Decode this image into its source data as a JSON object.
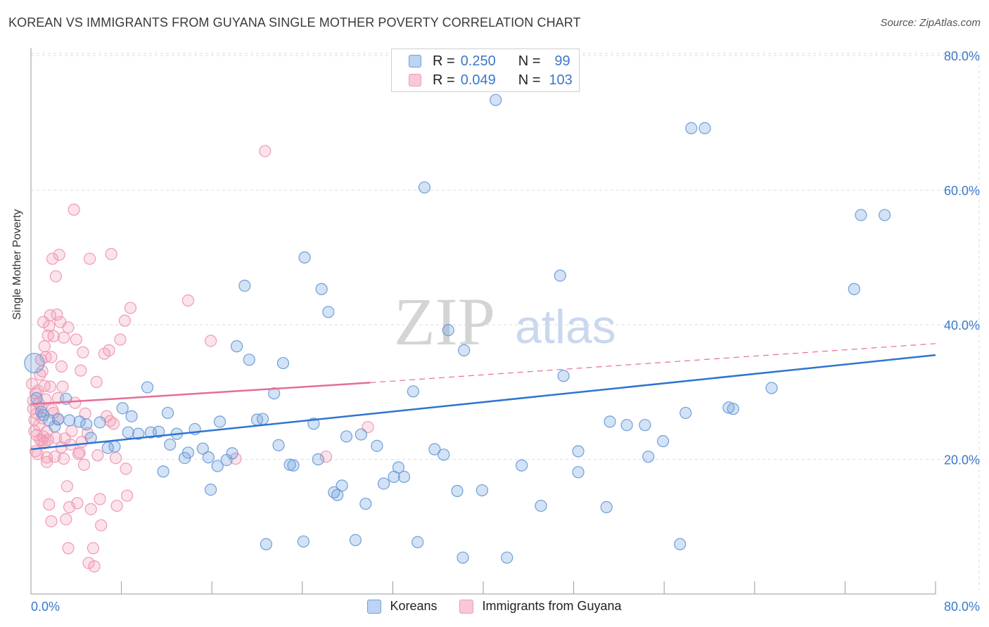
{
  "title": "KOREAN VS IMMIGRANTS FROM GUYANA SINGLE MOTHER POVERTY CORRELATION CHART",
  "source": "Source: ZipAtlas.com",
  "watermark": {
    "part1": "ZIP",
    "part2": "atlas"
  },
  "legend": {
    "r_label": "R =",
    "n_label": "N =",
    "rows": [
      {
        "r": "0.250",
        "n": "99"
      },
      {
        "r": "0.049",
        "n": "103"
      }
    ]
  },
  "chart_data": {
    "type": "scatter",
    "title": "KOREAN VS IMMIGRANTS FROM GUYANA SINGLE MOTHER POVERTY CORRELATION CHART",
    "xlabel": "",
    "ylabel": "Single Mother Poverty",
    "xlim": [
      0,
      80
    ],
    "ylim": [
      0,
      80
    ],
    "x_tick_labels": [
      "0.0%",
      "80.0%"
    ],
    "y_tick_labels": [
      "20.0%",
      "40.0%",
      "60.0%",
      "80.0%"
    ],
    "y_ticks": [
      20,
      40,
      60,
      80
    ],
    "grid": true,
    "legend_position": "top-center",
    "colors": {
      "koreans": "#6e9fdc",
      "guyana": "#f09ab5",
      "korean_line": "#2f74d0",
      "guyana_line": "#e56d97",
      "tick_text": "#3b78c9"
    },
    "series": [
      {
        "name": "Koreans",
        "r": 0.25,
        "n": 99,
        "trend": {
          "x": [
            0,
            80
          ],
          "y": [
            21.5,
            35.5
          ]
        },
        "points": [
          [
            0.3,
            34.3
          ],
          [
            0.5,
            29.1
          ],
          [
            1.1,
            26.6
          ],
          [
            2.4,
            26.0
          ],
          [
            3.1,
            29.0
          ],
          [
            3.4,
            25.8
          ],
          [
            4.3,
            25.6
          ],
          [
            5.3,
            23.2
          ],
          [
            6.1,
            25.5
          ],
          [
            6.8,
            21.7
          ],
          [
            8.1,
            27.6
          ],
          [
            8.9,
            26.4
          ],
          [
            8.6,
            24.0
          ],
          [
            9.5,
            23.8
          ],
          [
            10.3,
            30.7
          ],
          [
            10.6,
            24.0
          ],
          [
            11.7,
            18.2
          ],
          [
            12.1,
            26.9
          ],
          [
            12.3,
            22.2
          ],
          [
            12.9,
            23.8
          ],
          [
            13.6,
            20.2
          ],
          [
            13.9,
            21.0
          ],
          [
            14.5,
            24.5
          ],
          [
            15.2,
            21.6
          ],
          [
            15.7,
            20.3
          ],
          [
            15.9,
            15.5
          ],
          [
            16.5,
            19.0
          ],
          [
            16.7,
            25.6
          ],
          [
            17.3,
            19.9
          ],
          [
            17.8,
            20.9
          ],
          [
            18.2,
            36.8
          ],
          [
            18.9,
            45.8
          ],
          [
            19.3,
            34.8
          ],
          [
            20.0,
            25.9
          ],
          [
            20.5,
            26.0
          ],
          [
            20.8,
            7.4
          ],
          [
            21.5,
            29.8
          ],
          [
            21.9,
            22.1
          ],
          [
            22.3,
            34.3
          ],
          [
            22.9,
            19.2
          ],
          [
            23.2,
            19.1
          ],
          [
            24.1,
            7.8
          ],
          [
            24.2,
            50.0
          ],
          [
            25.0,
            25.3
          ],
          [
            25.4,
            20.0
          ],
          [
            25.7,
            45.3
          ],
          [
            26.3,
            41.9
          ],
          [
            26.8,
            15.1
          ],
          [
            27.1,
            14.7
          ],
          [
            27.5,
            16.1
          ],
          [
            27.9,
            23.4
          ],
          [
            28.7,
            8.0
          ],
          [
            29.2,
            23.7
          ],
          [
            29.6,
            13.4
          ],
          [
            30.6,
            22.0
          ],
          [
            31.2,
            16.4
          ],
          [
            32.1,
            17.4
          ],
          [
            32.5,
            18.8
          ],
          [
            33.0,
            17.4
          ],
          [
            33.8,
            30.1
          ],
          [
            34.2,
            7.7
          ],
          [
            34.8,
            60.4
          ],
          [
            35.7,
            21.5
          ],
          [
            36.5,
            20.7
          ],
          [
            36.9,
            39.2
          ],
          [
            37.7,
            15.3
          ],
          [
            38.2,
            5.4
          ],
          [
            38.3,
            36.2
          ],
          [
            39.9,
            15.4
          ],
          [
            41.1,
            73.4
          ],
          [
            42.1,
            5.4
          ],
          [
            43.4,
            19.1
          ],
          [
            45.1,
            13.1
          ],
          [
            46.8,
            47.3
          ],
          [
            47.1,
            32.4
          ],
          [
            48.4,
            18.1
          ],
          [
            48.4,
            21.2
          ],
          [
            50.9,
            12.9
          ],
          [
            51.2,
            25.6
          ],
          [
            52.7,
            25.1
          ],
          [
            54.3,
            25.1
          ],
          [
            54.6,
            20.4
          ],
          [
            55.9,
            22.7
          ],
          [
            57.4,
            7.4
          ],
          [
            57.9,
            26.9
          ],
          [
            58.4,
            69.2
          ],
          [
            59.6,
            69.2
          ],
          [
            61.7,
            27.7
          ],
          [
            62.1,
            27.5
          ],
          [
            65.5,
            30.6
          ],
          [
            72.8,
            45.3
          ],
          [
            73.4,
            56.3
          ],
          [
            75.5,
            56.3
          ],
          [
            1.6,
            25.8
          ],
          [
            0.9,
            27.1
          ],
          [
            2.1,
            24.9
          ],
          [
            4.9,
            25.2
          ],
          [
            7.4,
            21.9
          ],
          [
            11.3,
            24.1
          ]
        ]
      },
      {
        "name": "Immigrants from Guyana",
        "r": 0.049,
        "n": 103,
        "trend": {
          "x": [
            0,
            30
          ],
          "y": [
            28.2,
            31.4
          ]
        },
        "trend_dashed": {
          "x": [
            30,
            80
          ],
          "y": [
            31.4,
            37.2
          ]
        },
        "points": [
          [
            0.1,
            31.2
          ],
          [
            0.2,
            28.7
          ],
          [
            0.2,
            27.5
          ],
          [
            0.3,
            25.9
          ],
          [
            0.3,
            24.2
          ],
          [
            0.4,
            29.8
          ],
          [
            0.5,
            26.8
          ],
          [
            0.5,
            23.6
          ],
          [
            0.6,
            30.2
          ],
          [
            0.7,
            28.3
          ],
          [
            0.7,
            25.1
          ],
          [
            0.8,
            22.9
          ],
          [
            0.9,
            34.8
          ],
          [
            0.9,
            27.8
          ],
          [
            1.0,
            33.1
          ],
          [
            1.0,
            26.1
          ],
          [
            1.1,
            40.4
          ],
          [
            1.1,
            23.4
          ],
          [
            1.2,
            30.9
          ],
          [
            1.2,
            22.4
          ],
          [
            1.3,
            35.2
          ],
          [
            1.3,
            28.9
          ],
          [
            1.4,
            24.1
          ],
          [
            1.4,
            20.3
          ],
          [
            1.5,
            38.4
          ],
          [
            1.5,
            22.9
          ],
          [
            1.6,
            39.8
          ],
          [
            1.6,
            13.3
          ],
          [
            1.7,
            41.4
          ],
          [
            1.7,
            30.8
          ],
          [
            1.8,
            35.2
          ],
          [
            1.8,
            10.8
          ],
          [
            1.9,
            49.8
          ],
          [
            1.9,
            27.4
          ],
          [
            2.0,
            38.3
          ],
          [
            2.1,
            20.4
          ],
          [
            2.2,
            47.2
          ],
          [
            2.2,
            23.2
          ],
          [
            2.3,
            41.5
          ],
          [
            2.4,
            29.1
          ],
          [
            2.5,
            50.4
          ],
          [
            2.6,
            40.4
          ],
          [
            2.7,
            21.8
          ],
          [
            2.8,
            30.8
          ],
          [
            2.9,
            38.1
          ],
          [
            3.0,
            23.1
          ],
          [
            3.1,
            11.1
          ],
          [
            3.2,
            16.0
          ],
          [
            3.3,
            6.8
          ],
          [
            3.3,
            39.6
          ],
          [
            3.4,
            12.9
          ],
          [
            3.6,
            24.2
          ],
          [
            3.8,
            57.1
          ],
          [
            4.0,
            37.8
          ],
          [
            4.1,
            13.5
          ],
          [
            4.2,
            20.8
          ],
          [
            4.4,
            33.2
          ],
          [
            4.5,
            22.6
          ],
          [
            4.6,
            35.9
          ],
          [
            4.7,
            19.2
          ],
          [
            4.8,
            26.8
          ],
          [
            5.0,
            23.9
          ],
          [
            5.1,
            4.6
          ],
          [
            5.2,
            49.8
          ],
          [
            5.3,
            12.6
          ],
          [
            5.5,
            6.8
          ],
          [
            5.6,
            4.1
          ],
          [
            5.8,
            31.5
          ],
          [
            6.1,
            14.1
          ],
          [
            6.2,
            10.2
          ],
          [
            6.5,
            35.7
          ],
          [
            6.9,
            36.2
          ],
          [
            7.0,
            25.7
          ],
          [
            7.1,
            50.5
          ],
          [
            7.3,
            25.3
          ],
          [
            7.5,
            20.2
          ],
          [
            7.6,
            13.1
          ],
          [
            7.9,
            37.8
          ],
          [
            8.3,
            40.6
          ],
          [
            8.4,
            18.6
          ],
          [
            8.5,
            14.6
          ],
          [
            8.8,
            42.5
          ],
          [
            13.9,
            43.6
          ],
          [
            15.9,
            37.6
          ],
          [
            18.1,
            20.1
          ],
          [
            20.7,
            65.8
          ],
          [
            26.1,
            20.4
          ],
          [
            29.8,
            24.8
          ],
          [
            0.4,
            21.2
          ],
          [
            0.6,
            20.8
          ],
          [
            1.0,
            22.8
          ],
          [
            1.4,
            19.6
          ],
          [
            2.0,
            26.9
          ],
          [
            2.4,
            25.9
          ],
          [
            3.5,
            22.2
          ],
          [
            4.3,
            21.0
          ],
          [
            5.9,
            20.6
          ],
          [
            2.7,
            33.8
          ],
          [
            3.9,
            28.4
          ],
          [
            1.2,
            36.8
          ],
          [
            0.8,
            32.6
          ],
          [
            6.7,
            26.4
          ],
          [
            2.9,
            20.1
          ]
        ]
      }
    ]
  },
  "bottom_legend": [
    "Koreans",
    "Immigrants from Guyana"
  ]
}
